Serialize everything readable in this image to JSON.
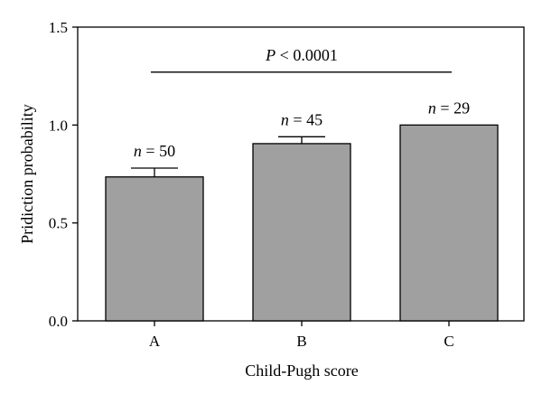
{
  "chart_data": {
    "type": "bar",
    "categories": [
      "A",
      "B",
      "C"
    ],
    "values": [
      0.735,
      0.905,
      1.0
    ],
    "error_upper": [
      0.78,
      0.94,
      1.0
    ],
    "bar_color": "#a0a0a0",
    "xlabel": "Child-Pugh score",
    "ylabel": "Pridiction probability",
    "ylim": [
      0,
      1.5
    ],
    "yticks": [
      0.0,
      0.5,
      1.0,
      1.5
    ],
    "ytick_labels": [
      "0.0",
      "0.5",
      "1.0",
      "1.5"
    ],
    "annotations": [
      {
        "italic": "n",
        "text": " = 50"
      },
      {
        "italic": "n",
        "text": " = 45"
      },
      {
        "italic": "n",
        "text": " = 29"
      }
    ],
    "significance": {
      "italic": "P",
      "text": " < 0.0001",
      "y": 1.27,
      "from": "A",
      "to": "C"
    }
  }
}
